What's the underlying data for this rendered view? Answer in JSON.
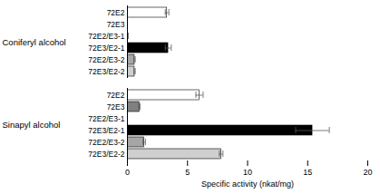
{
  "chart_data": {
    "type": "bar",
    "orientation": "horizontal",
    "x_label": "Specific activity (nkat/mg)",
    "categories": [
      "72E2",
      "72E3",
      "72E2/E3-1",
      "72E3/E2-1",
      "72E2/E3-2",
      "72E3/E2-2"
    ],
    "colors": [
      "#ffffff",
      "#808080",
      "#ffffff",
      "#000000",
      "#a6a6a6",
      "#cfcfcf"
    ],
    "series": [
      {
        "name": "Coniferyl alcohol",
        "values": [
          3.3,
          0,
          0.05,
          3.4,
          0.6,
          0.6
        ],
        "errors": [
          0.15,
          0,
          0,
          0.25,
          0.05,
          0.05
        ]
      },
      {
        "name": "Sinapyl alcohol",
        "values": [
          6.0,
          1.0,
          0,
          15.4,
          1.4,
          7.8
        ],
        "errors": [
          0.3,
          0.05,
          0,
          1.4,
          0.1,
          0.15
        ]
      }
    ],
    "xlim": [
      0,
      20
    ],
    "xticks": [
      0,
      5,
      10,
      15,
      20
    ],
    "grid": false
  }
}
